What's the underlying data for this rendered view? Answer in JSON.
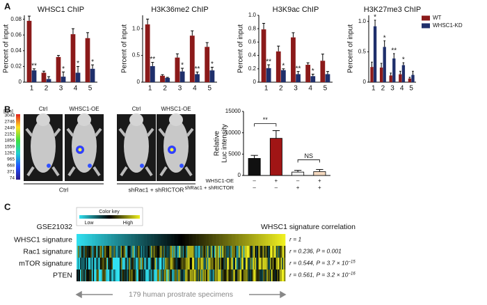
{
  "panel_labels": [
    "A",
    "B",
    "C"
  ],
  "chart_data": [
    {
      "type": "bar",
      "title": "WHSC1 ChIP",
      "ylabel": "Percent of input",
      "categories": [
        "1",
        "2",
        "3",
        "4",
        "5"
      ],
      "series": [
        {
          "name": "WT",
          "color": "#8b1a1a",
          "values": [
            0.078,
            0.012,
            0.032,
            0.061,
            0.056
          ],
          "errors": [
            0.006,
            0.002,
            0.002,
            0.007,
            0.007
          ]
        },
        {
          "name": "WHSC1-KD",
          "color": "#1f2f6b",
          "values": [
            0.015,
            0.004,
            0.007,
            0.012,
            0.017
          ],
          "errors": [
            0.002,
            0.003,
            0.006,
            0.008,
            0.005
          ]
        }
      ],
      "annotations": [
        "**",
        null,
        "*",
        "*",
        "*"
      ],
      "ylim": [
        0,
        0.085
      ],
      "yticks": [
        0,
        0.02,
        0.04,
        0.06,
        0.08
      ]
    },
    {
      "type": "bar",
      "title": "H3K36me2 ChIP",
      "ylabel": "Percent of input",
      "categories": [
        "1",
        "2",
        "3",
        "4",
        "5"
      ],
      "series": [
        {
          "name": "WT",
          "color": "#8b1a1a",
          "values": [
            1.08,
            0.12,
            0.46,
            0.87,
            0.66
          ],
          "errors": [
            0.1,
            0.02,
            0.07,
            0.09,
            0.08
          ]
        },
        {
          "name": "WHSC1-KD",
          "color": "#1f2f6b",
          "values": [
            0.3,
            0.08,
            0.2,
            0.15,
            0.22
          ],
          "errors": [
            0.07,
            0.01,
            0.06,
            0.04,
            0.06
          ]
        }
      ],
      "annotations": [
        "**",
        null,
        "*",
        "**",
        "*"
      ],
      "ylim": [
        0,
        1.25
      ],
      "yticks": [
        0,
        0.5,
        {
          "value": 1,
          "label": "1.0"
        }
      ]
    },
    {
      "type": "bar",
      "title": "H3K9ac ChIP",
      "ylabel": "Percent of input",
      "categories": [
        "1",
        "2",
        "3",
        "4",
        "5"
      ],
      "series": [
        {
          "name": "WT",
          "color": "#8b1a1a",
          "values": [
            0.79,
            0.46,
            0.67,
            0.26,
            0.32
          ],
          "errors": [
            0.09,
            0.08,
            0.07,
            0.03,
            0.1
          ]
        },
        {
          "name": "WHSC1-KD",
          "color": "#1f2f6b",
          "values": [
            0.21,
            0.18,
            0.12,
            0.09,
            0.12
          ],
          "errors": [
            0.05,
            0.02,
            0.04,
            0.03,
            0.04
          ]
        }
      ],
      "annotations": [
        "**",
        "*",
        "**",
        "*",
        null
      ],
      "ylim": [
        0,
        1.0
      ],
      "yticks": [
        0,
        0.2,
        0.4,
        0.6,
        0.8,
        {
          "value": 1,
          "label": "1.0"
        }
      ]
    },
    {
      "type": "bar",
      "title": "H3K27me3 ChIP",
      "ylabel": "Percent of input",
      "categories": [
        "1",
        "2",
        "3",
        "4",
        "5"
      ],
      "series": [
        {
          "name": "WT",
          "color": "#8b1a1a",
          "values": [
            0.25,
            0.24,
            0.11,
            0.13,
            0.06
          ],
          "errors": [
            0.08,
            0.07,
            0.04,
            0.05,
            0.02
          ]
        },
        {
          "name": "WHSC1-KD",
          "color": "#1f2f6b",
          "values": [
            0.92,
            0.58,
            0.39,
            0.28,
            0.12
          ],
          "errors": [
            0.1,
            0.1,
            0.08,
            0.04,
            0.06
          ]
        }
      ],
      "annotations": [
        "*",
        "*",
        "**",
        "*",
        null
      ],
      "legend": "upper right",
      "ylim": [
        0,
        1.1
      ],
      "yticks": [
        0,
        0.5,
        {
          "value": 1,
          "label": "1.0"
        }
      ]
    },
    {
      "type": "bar",
      "ylabel": [
        "Relative",
        "Luc intensity"
      ],
      "values": [
        4000,
        8700,
        800,
        900
      ],
      "errors": [
        700,
        1800,
        400,
        500
      ],
      "colors": [
        "#111111",
        "#a01515",
        "#f2f2f2",
        "#f5d9c0"
      ],
      "rows": [
        {
          "label": "WHSC1-OE",
          "signs": [
            "–",
            "+",
            "–",
            "+"
          ]
        },
        {
          "label": "shRac1 + shRICTOR",
          "signs": [
            "–",
            "–",
            "+",
            "+"
          ]
        }
      ],
      "annotations": [
        "**",
        "NS"
      ],
      "ylim": [
        0,
        15000
      ],
      "yticks": [
        0,
        5000,
        10000,
        15000
      ]
    }
  ],
  "panel_b": {
    "image_labels": [
      "Ctrl",
      "WHSC1-OE",
      "Ctrl",
      "WHSC1-OE"
    ],
    "groups": [
      "Ctrl",
      "shRac1 + shRICTOR"
    ],
    "colorbar_unit": "[cps]",
    "colorbar_ticks": [
      "3043",
      "2746",
      "2449",
      "2152",
      "1856",
      "1559",
      "1262",
      "965",
      "668",
      "371",
      "74"
    ]
  },
  "panel_c": {
    "dataset": "GSE21032",
    "color_key": "Color key",
    "key_low": "Low",
    "key_high": "High",
    "heading": "WHSC1 signature correlation",
    "rows": [
      {
        "name": "WHSC1 signature",
        "stat": "r = 1"
      },
      {
        "name": "Rac1 signature",
        "stat": "r = 0.236, P = 0.001"
      },
      {
        "name": "mTOR signature",
        "stat": "r = 0.544, P = 3.7 × 10",
        "exponent": "−15"
      },
      {
        "name": "PTEN",
        "stat": "r = 0.561, P = 3.2 × 10",
        "exponent": "−16"
      }
    ],
    "footer": "179 human prostrate specimens"
  }
}
